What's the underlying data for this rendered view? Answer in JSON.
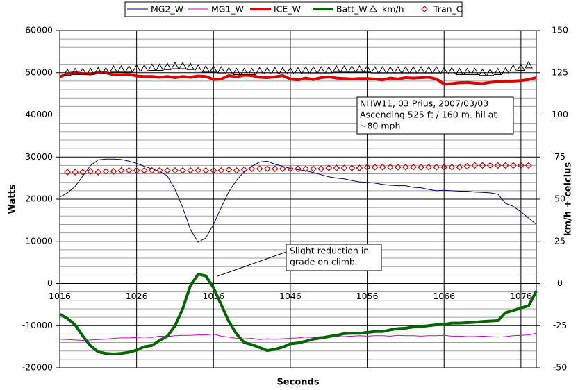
{
  "chart_data": {
    "type": "line",
    "x_label": "Seconds",
    "y_label": "Watts",
    "y2_label": "km/h + celcius",
    "x": [
      1016,
      1017,
      1018,
      1019,
      1020,
      1021,
      1022,
      1023,
      1024,
      1025,
      1026,
      1027,
      1028,
      1029,
      1030,
      1031,
      1032,
      1033,
      1034,
      1035,
      1036,
      1037,
      1038,
      1039,
      1040,
      1041,
      1042,
      1043,
      1044,
      1045,
      1046,
      1047,
      1048,
      1049,
      1050,
      1051,
      1052,
      1053,
      1054,
      1055,
      1056,
      1057,
      1058,
      1059,
      1060,
      1061,
      1062,
      1063,
      1064,
      1065,
      1066,
      1067,
      1068,
      1069,
      1070,
      1071,
      1072,
      1073,
      1074,
      1075,
      1076,
      1077,
      1078
    ],
    "xlim": [
      1016,
      1078
    ],
    "xticks": [
      1016,
      1026,
      1036,
      1046,
      1056,
      1066,
      1076
    ],
    "ylim": [
      -20000,
      60000
    ],
    "yticks": [
      -20000,
      -10000,
      0,
      10000,
      20000,
      30000,
      40000,
      50000,
      60000
    ],
    "y2lim": [
      -50,
      150
    ],
    "y2ticks": [
      -50,
      -25,
      0,
      25,
      50,
      75,
      100,
      125,
      150
    ],
    "grid": true,
    "series": [
      {
        "name": "MG2_W",
        "color": "#000080",
        "line_width": 1,
        "values": [
          20500,
          21500,
          23000,
          25500,
          28000,
          29300,
          29500,
          29500,
          29400,
          29000,
          28500,
          27800,
          27200,
          26600,
          25500,
          22300,
          18000,
          12800,
          9800,
          10800,
          14000,
          18000,
          21800,
          24500,
          26500,
          27800,
          28800,
          29000,
          28300,
          27800,
          27300,
          27000,
          26700,
          26300,
          25800,
          25300,
          25000,
          24800,
          24400,
          24100,
          24000,
          23800,
          23500,
          23300,
          23200,
          23200,
          22800,
          22700,
          22300,
          22000,
          22100,
          22000,
          21900,
          21900,
          21700,
          21600,
          21500,
          21200,
          19000,
          18300,
          17000,
          15500,
          14000
        ]
      },
      {
        "name": "MG1_W",
        "color": "#cc00cc",
        "line_width": 1,
        "values": [
          -13200,
          -13300,
          -13400,
          -13500,
          -13400,
          -13300,
          -13200,
          -13000,
          -12900,
          -12900,
          -12800,
          -12700,
          -12800,
          -12500,
          -12600,
          -12400,
          -12300,
          -12300,
          -12200,
          -12200,
          -12000,
          -12500,
          -12700,
          -13000,
          -13100,
          -13000,
          -13300,
          -13100,
          -13200,
          -13100,
          -13000,
          -12900,
          -12700,
          -12800,
          -12600,
          -12700,
          -12600,
          -12600,
          -12500,
          -12400,
          -12500,
          -12400,
          -12400,
          -12500,
          -12300,
          -12400,
          -12400,
          -12500,
          -12400,
          -12400,
          -12300,
          -12500,
          -12500,
          -12600,
          -12600,
          -12500,
          -12600,
          -12700,
          -12600,
          -12400,
          -12300,
          -12200,
          -11800
        ]
      },
      {
        "name": "ICE_W",
        "color": "#dd0000",
        "line_width": 4,
        "values": [
          49000,
          49800,
          50000,
          49800,
          49700,
          50000,
          50000,
          49500,
          49500,
          49600,
          49200,
          49100,
          49100,
          48900,
          49100,
          48800,
          49100,
          48900,
          49200,
          49100,
          48400,
          48500,
          49300,
          49000,
          49400,
          49300,
          48900,
          48800,
          49000,
          49300,
          48500,
          48300,
          48700,
          48400,
          48800,
          49000,
          48700,
          48600,
          48500,
          48600,
          48600,
          48500,
          48300,
          48700,
          48500,
          48800,
          48700,
          48800,
          48900,
          48500,
          47300,
          47400,
          47600,
          47700,
          47500,
          47400,
          47700,
          47900,
          48000,
          48000,
          48100,
          48400,
          48800
        ]
      },
      {
        "name": "Batt_W",
        "color": "#006600",
        "line_width": 4,
        "values": [
          -7300,
          -8300,
          -9800,
          -12500,
          -14800,
          -16200,
          -16600,
          -16700,
          -16600,
          -16300,
          -15800,
          -15000,
          -14700,
          -13500,
          -12500,
          -10000,
          -6000,
          -500,
          2200,
          1800,
          -1000,
          -5000,
          -9000,
          -12000,
          -14000,
          -14500,
          -15200,
          -15900,
          -15600,
          -15100,
          -14300,
          -14100,
          -13700,
          -13200,
          -12900,
          -12600,
          -12300,
          -11900,
          -11800,
          -11800,
          -11600,
          -11400,
          -11400,
          -11000,
          -10700,
          -10600,
          -10300,
          -10200,
          -10000,
          -9800,
          -9700,
          -9400,
          -9400,
          -9300,
          -9200,
          -9000,
          -8900,
          -8800,
          -6900,
          -6400,
          -5800,
          -5300,
          -1800
        ]
      },
      {
        "name": "km/h",
        "color": "#000000",
        "marker": "triangle",
        "axis": "y2",
        "values": [
          null,
          125,
          125.5,
          125.5,
          125.5,
          126,
          126,
          127,
          127,
          127,
          127.5,
          127.5,
          128,
          128,
          128.5,
          129,
          129,
          128.5,
          127.5,
          127,
          127,
          126.5,
          126,
          125.5,
          125.5,
          125.5,
          126,
          126,
          126,
          126,
          126,
          126,
          126.5,
          126.5,
          126.5,
          126.5,
          127,
          127,
          127,
          127,
          127,
          126.5,
          126.5,
          126.5,
          126.5,
          126.5,
          126.5,
          126.5,
          126.5,
          126.5,
          126,
          126,
          125.5,
          125.5,
          125.5,
          125,
          125,
          125.5,
          126,
          127.5,
          128,
          129.5,
          null
        ]
      },
      {
        "name": "Tran_C",
        "color": "#cc0000",
        "marker": "diamond",
        "axis": "y2",
        "values": [
          null,
          66,
          66,
          66,
          66.5,
          66,
          66.5,
          66.5,
          67,
          67,
          67,
          67,
          67,
          67,
          67,
          67,
          67,
          67,
          67,
          67,
          67,
          67,
          67.5,
          67,
          67.5,
          68,
          68,
          68,
          68,
          68,
          68,
          68,
          68,
          68,
          68,
          68.5,
          68.5,
          68.5,
          68.5,
          68.5,
          69,
          69,
          69,
          69,
          69,
          69,
          69,
          69,
          69,
          69,
          69,
          69,
          69,
          69.5,
          70,
          70,
          70,
          70,
          70,
          70,
          70,
          70,
          null
        ]
      }
    ],
    "annotations": [
      {
        "lines": [
          "NHW11, 03 Prius, 2007/03/03",
          "Ascending 525 ft / 160 m. hil at",
          "~80 mph."
        ]
      },
      {
        "lines": [
          "Slight reduction in",
          "grade on climb."
        ]
      }
    ]
  }
}
